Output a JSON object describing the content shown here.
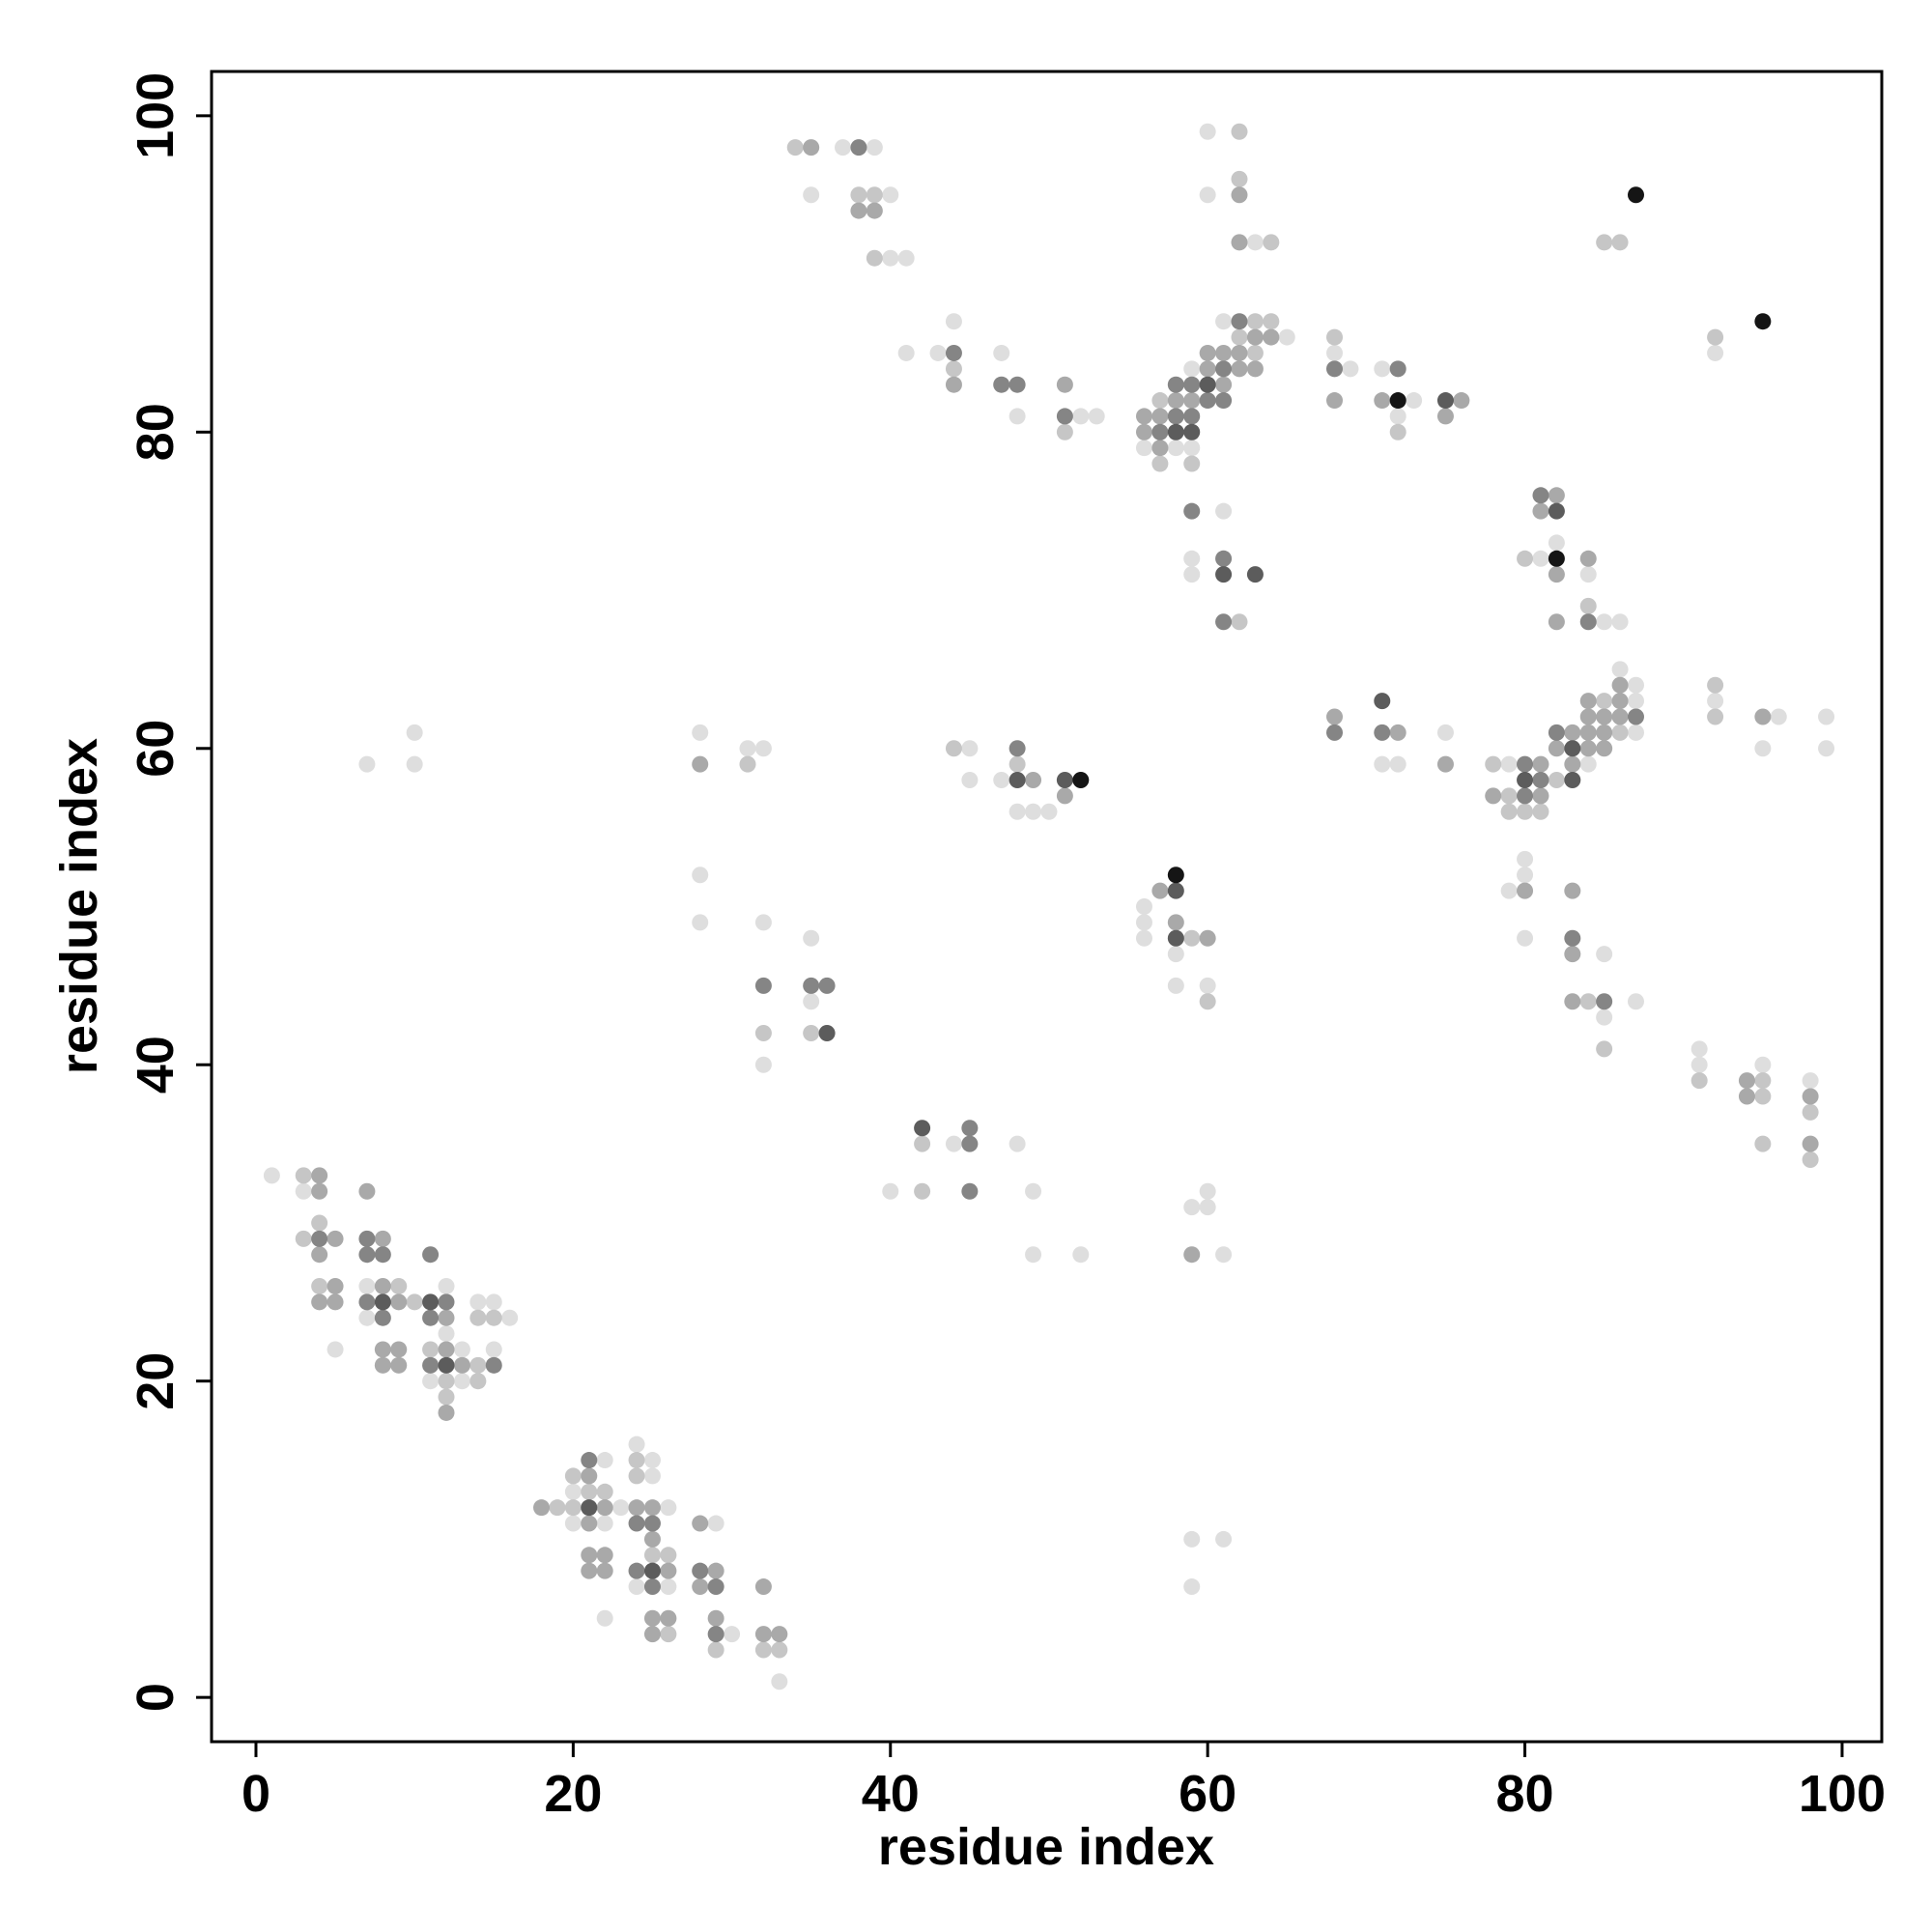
{
  "chart_data": {
    "type": "scatter",
    "xlabel": "residue index",
    "ylabel": "residue index",
    "xlim": [
      -2.8,
      102.5
    ],
    "ylim": [
      -2.8,
      102.8
    ],
    "xticks": [
      0,
      20,
      40,
      60,
      80,
      100
    ],
    "yticks": [
      0,
      20,
      40,
      60,
      80,
      100
    ],
    "series": [
      {
        "color": "#dedede",
        "x": [
          1,
          3,
          7,
          12,
          14,
          15,
          7,
          16,
          12,
          5,
          13,
          15,
          11,
          13,
          20,
          20,
          22,
          22,
          23,
          22,
          24,
          25,
          25,
          26,
          24,
          26,
          29,
          30,
          33,
          7,
          10,
          10,
          28,
          31,
          32,
          28,
          28,
          32,
          35,
          35,
          32,
          44,
          48,
          40,
          49,
          49,
          52,
          45,
          45,
          47,
          48,
          49,
          50,
          37,
          39,
          35,
          40,
          40,
          41,
          41,
          43,
          44,
          47,
          48,
          52,
          53,
          60,
          60,
          63,
          61,
          65,
          59,
          56,
          58,
          59,
          61,
          59,
          59,
          56,
          56,
          56,
          58,
          58,
          60,
          60,
          59,
          60,
          61,
          59,
          61,
          59,
          68,
          69,
          71,
          73,
          72,
          71,
          72,
          75,
          79,
          84,
          86,
          87,
          87,
          87,
          82,
          81,
          84,
          86,
          85,
          80,
          80,
          79,
          80,
          85,
          85,
          87,
          92,
          92,
          96,
          95,
          99,
          99,
          91,
          91,
          95,
          98
        ],
        "y": [
          33,
          32,
          26,
          26,
          25,
          25,
          24,
          24,
          23,
          22,
          22,
          22,
          20,
          20,
          13,
          11,
          15,
          11,
          12,
          5,
          16,
          15,
          14,
          12,
          7,
          7,
          11,
          4,
          1,
          59,
          61,
          59,
          61,
          60,
          60,
          52,
          49,
          49,
          48,
          44,
          40,
          35,
          35,
          32,
          32,
          28,
          28,
          60,
          58,
          58,
          56,
          56,
          56,
          98,
          98,
          95,
          95,
          91,
          91,
          85,
          85,
          87,
          85,
          81,
          81,
          81,
          99,
          95,
          92,
          87,
          86,
          84,
          79,
          79,
          79,
          75,
          72,
          71,
          50,
          49,
          48,
          47,
          45,
          45,
          32,
          31,
          31,
          28,
          10,
          10,
          7,
          85,
          84,
          84,
          82,
          81,
          59,
          59,
          61,
          59,
          59,
          65,
          64,
          63,
          61,
          73,
          72,
          71,
          68,
          68,
          53,
          52,
          51,
          48,
          47,
          43,
          44,
          85,
          63,
          62,
          60,
          62,
          60,
          41,
          40,
          40,
          39
        ]
      },
      {
        "color": "#c6c6c6",
        "x": [
          3,
          4,
          3,
          4,
          9,
          10,
          14,
          15,
          11,
          14,
          12,
          14,
          12,
          19,
          20,
          20,
          21,
          22,
          24,
          24,
          25,
          26,
          26,
          29,
          32,
          33,
          31,
          32,
          35,
          42,
          42,
          44,
          48,
          34,
          38,
          39,
          39,
          44,
          51,
          62,
          62,
          64,
          63,
          64,
          62,
          63,
          57,
          57,
          59,
          62,
          59,
          60,
          68,
          72,
          78,
          82,
          79,
          79,
          80,
          81,
          85,
          86,
          80,
          84,
          84,
          85,
          85,
          86,
          92,
          92,
          92,
          91,
          95,
          95,
          95,
          98,
          98
        ],
        "y": [
          33,
          30,
          29,
          26,
          26,
          25,
          24,
          24,
          22,
          21,
          20,
          20,
          19,
          12,
          14,
          12,
          13,
          13,
          15,
          14,
          9,
          9,
          4,
          3,
          3,
          3,
          59,
          42,
          42,
          35,
          32,
          60,
          59,
          98,
          95,
          95,
          91,
          84,
          80,
          99,
          96,
          92,
          87,
          87,
          86,
          85,
          82,
          78,
          78,
          68,
          48,
          44,
          86,
          80,
          59,
          58,
          57,
          56,
          56,
          56,
          63,
          61,
          72,
          69,
          44,
          41,
          92,
          92,
          86,
          64,
          62,
          39,
          39,
          38,
          35,
          37,
          34
        ]
      },
      {
        "color": "#a9a9a9",
        "x": [
          4,
          4,
          4,
          5,
          8,
          5,
          8,
          4,
          5,
          9,
          12,
          8,
          9,
          12,
          8,
          9,
          13,
          12,
          7,
          18,
          21,
          21,
          22,
          21,
          22,
          21,
          22,
          24,
          25,
          25,
          26,
          25,
          26,
          25,
          28,
          29,
          28,
          29,
          32,
          32,
          33,
          28,
          49,
          51,
          35,
          38,
          39,
          44,
          51,
          62,
          62,
          63,
          64,
          60,
          61,
          62,
          60,
          62,
          63,
          61,
          58,
          59,
          56,
          57,
          56,
          57,
          57,
          58,
          60,
          59,
          68,
          71,
          76,
          75,
          68,
          72,
          75,
          81,
          78,
          81,
          83,
          84,
          82,
          84,
          83,
          84,
          84,
          85,
          86,
          85,
          85,
          86,
          86,
          82,
          81,
          84,
          82,
          82,
          80,
          83,
          83,
          83,
          95,
          94,
          94,
          98,
          98
        ],
        "y": [
          33,
          32,
          28,
          29,
          29,
          26,
          26,
          25,
          25,
          25,
          24,
          22,
          22,
          22,
          21,
          21,
          21,
          18,
          32,
          12,
          14,
          11,
          12,
          9,
          9,
          8,
          8,
          12,
          12,
          10,
          8,
          5,
          5,
          4,
          11,
          8,
          7,
          5,
          7,
          4,
          4,
          59,
          58,
          57,
          98,
          94,
          94,
          83,
          83,
          95,
          92,
          86,
          86,
          85,
          85,
          85,
          84,
          84,
          84,
          83,
          82,
          82,
          81,
          81,
          80,
          79,
          51,
          49,
          48,
          28,
          82,
          82,
          82,
          81,
          62,
          61,
          59,
          59,
          57,
          57,
          61,
          61,
          60,
          60,
          59,
          63,
          62,
          62,
          62,
          61,
          60,
          64,
          63,
          76,
          75,
          72,
          71,
          68,
          51,
          51,
          47,
          44,
          62,
          39,
          38,
          38,
          35
        ]
      },
      {
        "color": "#858585",
        "x": [
          4,
          7,
          7,
          8,
          11,
          7,
          12,
          8,
          11,
          11,
          15,
          21,
          24,
          25,
          24,
          25,
          28,
          29,
          29,
          32,
          35,
          36,
          45,
          45,
          45,
          48,
          38,
          44,
          47,
          48,
          51,
          62,
          61,
          58,
          59,
          60,
          61,
          58,
          59,
          57,
          59,
          61,
          61,
          68,
          72,
          68,
          71,
          80,
          81,
          80,
          82,
          87,
          81,
          84,
          83,
          85
        ],
        "y": [
          29,
          29,
          28,
          28,
          28,
          25,
          25,
          24,
          24,
          21,
          21,
          15,
          11,
          11,
          8,
          7,
          8,
          7,
          4,
          45,
          45,
          45,
          36,
          35,
          32,
          60,
          98,
          85,
          83,
          83,
          81,
          87,
          84,
          83,
          83,
          82,
          82,
          81,
          81,
          80,
          75,
          72,
          68,
          84,
          84,
          61,
          61,
          59,
          58,
          57,
          61,
          62,
          76,
          68,
          48,
          44
        ]
      },
      {
        "color": "#5c5c5c",
        "x": [
          8,
          11,
          12,
          21,
          25,
          36,
          42,
          48,
          51,
          60,
          58,
          59,
          61,
          63,
          58,
          58,
          75,
          71,
          80,
          83,
          83,
          82
        ],
        "y": [
          25,
          25,
          21,
          12,
          8,
          42,
          36,
          58,
          58,
          83,
          80,
          80,
          71,
          71,
          51,
          48,
          82,
          63,
          58,
          60,
          58,
          75
        ]
      },
      {
        "color": "#151515",
        "x": [
          52,
          58,
          72,
          82,
          87,
          95
        ],
        "y": [
          58,
          52,
          82,
          72,
          95,
          87
        ]
      }
    ]
  }
}
